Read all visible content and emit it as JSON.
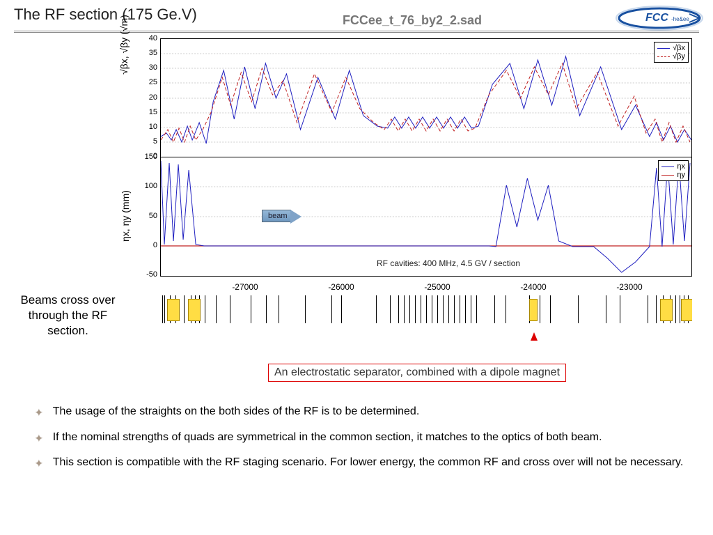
{
  "title": "The RF section (175 Ge.V)",
  "chart_header": "FCCee_t_76_by2_2.sad",
  "logo": {
    "main": "FCC",
    "sub": "-he&ee"
  },
  "plot1": {
    "ylabel": "√βx, √βy (√m)",
    "ylim": [
      0,
      40
    ],
    "yticks": [
      0,
      5,
      10,
      15,
      20,
      25,
      30,
      35,
      40
    ],
    "series": [
      {
        "label": "√βx",
        "color": "#2020c0",
        "dash": false
      },
      {
        "label": "√βy",
        "color": "#c02020",
        "dash": true
      }
    ],
    "background": "#ffffff",
    "grid_color": "#cccccc"
  },
  "plot2": {
    "ylabel": "ηx, ηy (mm)",
    "ylim": [
      -50,
      150
    ],
    "yticks": [
      -50,
      0,
      50,
      100,
      150
    ],
    "series": [
      {
        "label": "ηx",
        "color": "#2020c0",
        "dash": false
      },
      {
        "label": "ηy",
        "color": "#c02020",
        "dash": false
      }
    ],
    "background": "#ffffff",
    "grid_color": "#cccccc"
  },
  "xaxis": {
    "xlim": [
      -28000,
      -22500
    ],
    "ticks": [
      -27000,
      -26000,
      -25000,
      -24000,
      -23000
    ]
  },
  "beam_arrow_label": "beam",
  "cavity_note": "RF cavities: 400 MHz, 4.5 GV / section",
  "left_note": "Beams cross over through the RF section.",
  "callout": "An electrostatic separator, combined with a dipole magnet",
  "bullets": [
    "The usage of the straights on the both sides of the RF is to be determined.",
    "If the nominal strengths of quads are symmetrical in the common section, it matches to the optics of both beam.",
    "This section is compatible with the RF staging scenario. For lower energy, the common RF and cross over will not be necessary."
  ],
  "lattice": {
    "blocks": [
      {
        "x": 10,
        "w": 16
      },
      {
        "x": 40,
        "w": 16
      },
      {
        "x": 530,
        "w": 10
      },
      {
        "x": 718,
        "w": 16
      },
      {
        "x": 748,
        "w": 16
      }
    ],
    "ticks": [
      3,
      6,
      14,
      22,
      34,
      44,
      50,
      56,
      64,
      80,
      100,
      130,
      152,
      170,
      208,
      246,
      260,
      310,
      330,
      342,
      350,
      358,
      366,
      374,
      382,
      390,
      398,
      406,
      414,
      422,
      430,
      438,
      446,
      454,
      480,
      496,
      530,
      545,
      560,
      600,
      640,
      660,
      700,
      712,
      722,
      732,
      740,
      746,
      752,
      758
    ]
  },
  "colors": {
    "blue": "#2020c0",
    "red": "#c02020",
    "callout_border": "#d00000",
    "arrow_bg": "#7fa3c8"
  }
}
